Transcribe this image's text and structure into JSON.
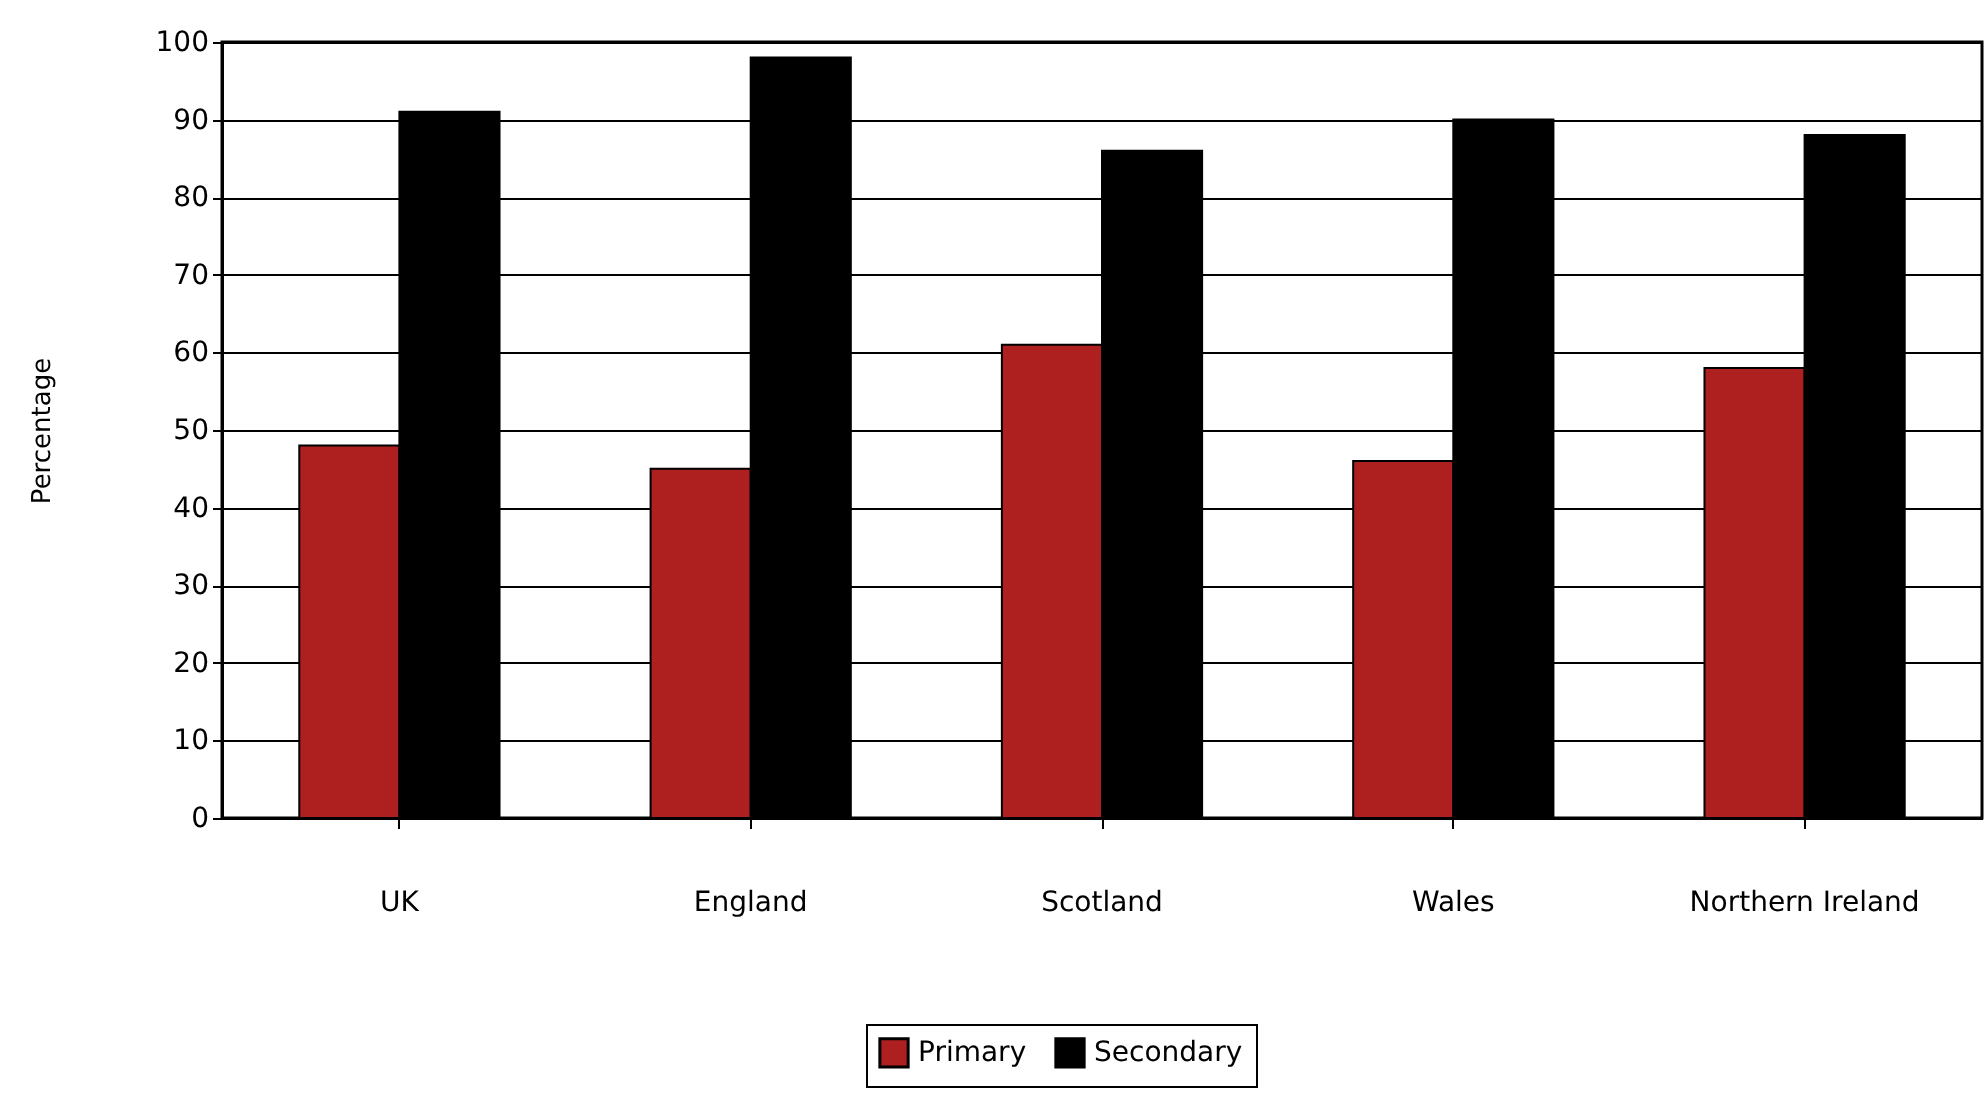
{
  "chart_data": {
    "type": "bar",
    "ylabel": "Percentage",
    "categories": [
      "UK",
      "England",
      "Scotland",
      "Wales",
      "Northern Ireland"
    ],
    "series": [
      {
        "name": "Primary",
        "color": "#ae2020",
        "values": [
          48,
          45,
          61,
          46,
          58
        ]
      },
      {
        "name": "Secondary",
        "color": "#000000",
        "values": [
          91,
          98,
          86,
          90,
          88
        ]
      }
    ],
    "ylim": [
      0,
      100
    ],
    "yticks": [
      0,
      10,
      20,
      30,
      40,
      50,
      60,
      70,
      80,
      90,
      100
    ],
    "grid": "y",
    "legend": "bottom"
  }
}
